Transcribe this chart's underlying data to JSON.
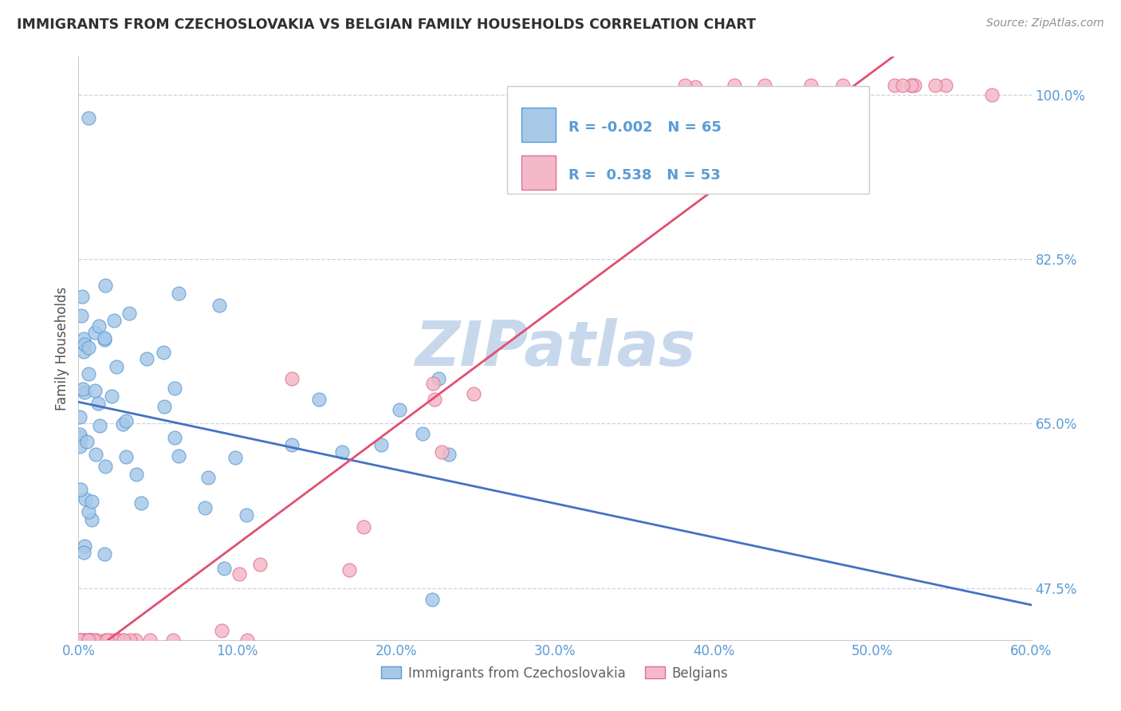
{
  "title": "IMMIGRANTS FROM CZECHOSLOVAKIA VS BELGIAN FAMILY HOUSEHOLDS CORRELATION CHART",
  "source": "Source: ZipAtlas.com",
  "ylabel": "Family Households",
  "legend_labels": [
    "Immigrants from Czechoslovakia",
    "Belgians"
  ],
  "r_values": [
    -0.002,
    0.538
  ],
  "n_values": [
    65,
    53
  ],
  "xlim": [
    0.0,
    0.6
  ],
  "ylim": [
    0.42,
    1.04
  ],
  "yticks": [
    0.475,
    0.65,
    0.825,
    1.0
  ],
  "ytick_labels": [
    "47.5%",
    "65.0%",
    "82.5%",
    "100.0%"
  ],
  "xticks": [
    0.0,
    0.1,
    0.2,
    0.3,
    0.4,
    0.5,
    0.6
  ],
  "xtick_labels": [
    "0.0%",
    "10.0%",
    "20.0%",
    "30.0%",
    "40.0%",
    "50.0%",
    "60.0%"
  ],
  "blue_scatter_color": "#a8c8e8",
  "blue_edge_color": "#5b9bd5",
  "pink_scatter_color": "#f4b8c8",
  "pink_edge_color": "#e07090",
  "blue_line_color": "#4472c4",
  "pink_line_color": "#e05070",
  "axis_color": "#5b9bd5",
  "grid_color": "#c0c8d8",
  "watermark_color": "#c8d8ec",
  "title_color": "#303030",
  "source_color": "#909090"
}
